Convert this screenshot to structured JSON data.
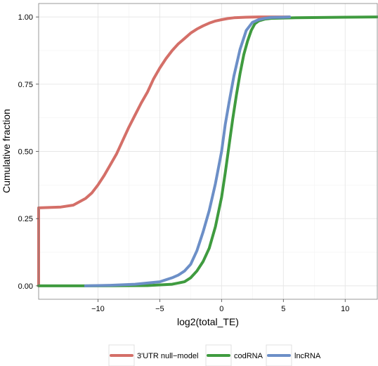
{
  "chart_data": {
    "type": "line",
    "subtype": "ecdf",
    "xlabel": "log2(total_TE)",
    "ylabel": "Cumulative fraction",
    "xlim": [
      -14.8,
      12.6
    ],
    "ylim": [
      -0.05,
      1.05
    ],
    "x_ticks": [
      -10,
      -5,
      0,
      5,
      10
    ],
    "x_tick_labels": [
      "−10",
      "−5",
      "0",
      "5",
      "10"
    ],
    "y_ticks": [
      0,
      0.25,
      0.5,
      0.75,
      1.0
    ],
    "y_tick_labels": [
      "0.00",
      "0.25",
      "0.50",
      "0.75",
      "1.00"
    ],
    "grid": true,
    "legend_position": "bottom",
    "series": [
      {
        "name": "3'UTR null−model",
        "color": "#D46F68",
        "x": [
          -14.8,
          -14.8,
          -13.0,
          -12.0,
          -11.0,
          -10.5,
          -10.0,
          -9.5,
          -9.0,
          -8.5,
          -8.0,
          -7.5,
          -7.0,
          -6.5,
          -6.0,
          -5.5,
          -5.0,
          -4.5,
          -4.0,
          -3.5,
          -3.0,
          -2.5,
          -2.0,
          -1.5,
          -1.0,
          -0.5,
          0.0,
          0.5,
          1.0,
          1.5,
          2.0,
          3.0,
          4.0,
          5.0,
          5.5
        ],
        "y": [
          0.0,
          0.29,
          0.293,
          0.3,
          0.325,
          0.345,
          0.375,
          0.41,
          0.45,
          0.49,
          0.54,
          0.59,
          0.635,
          0.68,
          0.72,
          0.77,
          0.81,
          0.845,
          0.875,
          0.9,
          0.92,
          0.94,
          0.955,
          0.967,
          0.977,
          0.985,
          0.99,
          0.994,
          0.997,
          0.998,
          0.999,
          1.0,
          1.0,
          1.0,
          1.0
        ]
      },
      {
        "name": "codRNA",
        "color": "#3F9B3F",
        "x": [
          -14.8,
          -10.0,
          -6.0,
          -4.0,
          -3.0,
          -2.5,
          -2.0,
          -1.5,
          -1.0,
          -0.5,
          0.0,
          0.3,
          0.6,
          0.9,
          1.2,
          1.5,
          1.8,
          2.1,
          2.4,
          2.7,
          3.0,
          3.5,
          4.0,
          6.0,
          10.0,
          12.6
        ],
        "y": [
          0.0,
          0.0,
          0.001,
          0.006,
          0.015,
          0.03,
          0.055,
          0.09,
          0.14,
          0.22,
          0.33,
          0.42,
          0.52,
          0.62,
          0.71,
          0.79,
          0.86,
          0.91,
          0.95,
          0.975,
          0.985,
          0.992,
          0.995,
          0.997,
          0.999,
          1.0
        ]
      },
      {
        "name": "lncRNA",
        "color": "#6C8FC7",
        "x": [
          -11.0,
          -9.0,
          -7.0,
          -5.0,
          -4.0,
          -3.5,
          -3.0,
          -2.5,
          -2.0,
          -1.5,
          -1.0,
          -0.5,
          0.0,
          0.3,
          0.6,
          1.0,
          1.5,
          2.0,
          2.5,
          3.0,
          3.5,
          4.0,
          5.0,
          5.5
        ],
        "y": [
          0.0,
          0.002,
          0.006,
          0.015,
          0.03,
          0.04,
          0.055,
          0.08,
          0.13,
          0.2,
          0.28,
          0.38,
          0.5,
          0.6,
          0.68,
          0.78,
          0.88,
          0.95,
          0.98,
          0.99,
          0.995,
          0.998,
          0.999,
          1.0
        ]
      }
    ]
  }
}
